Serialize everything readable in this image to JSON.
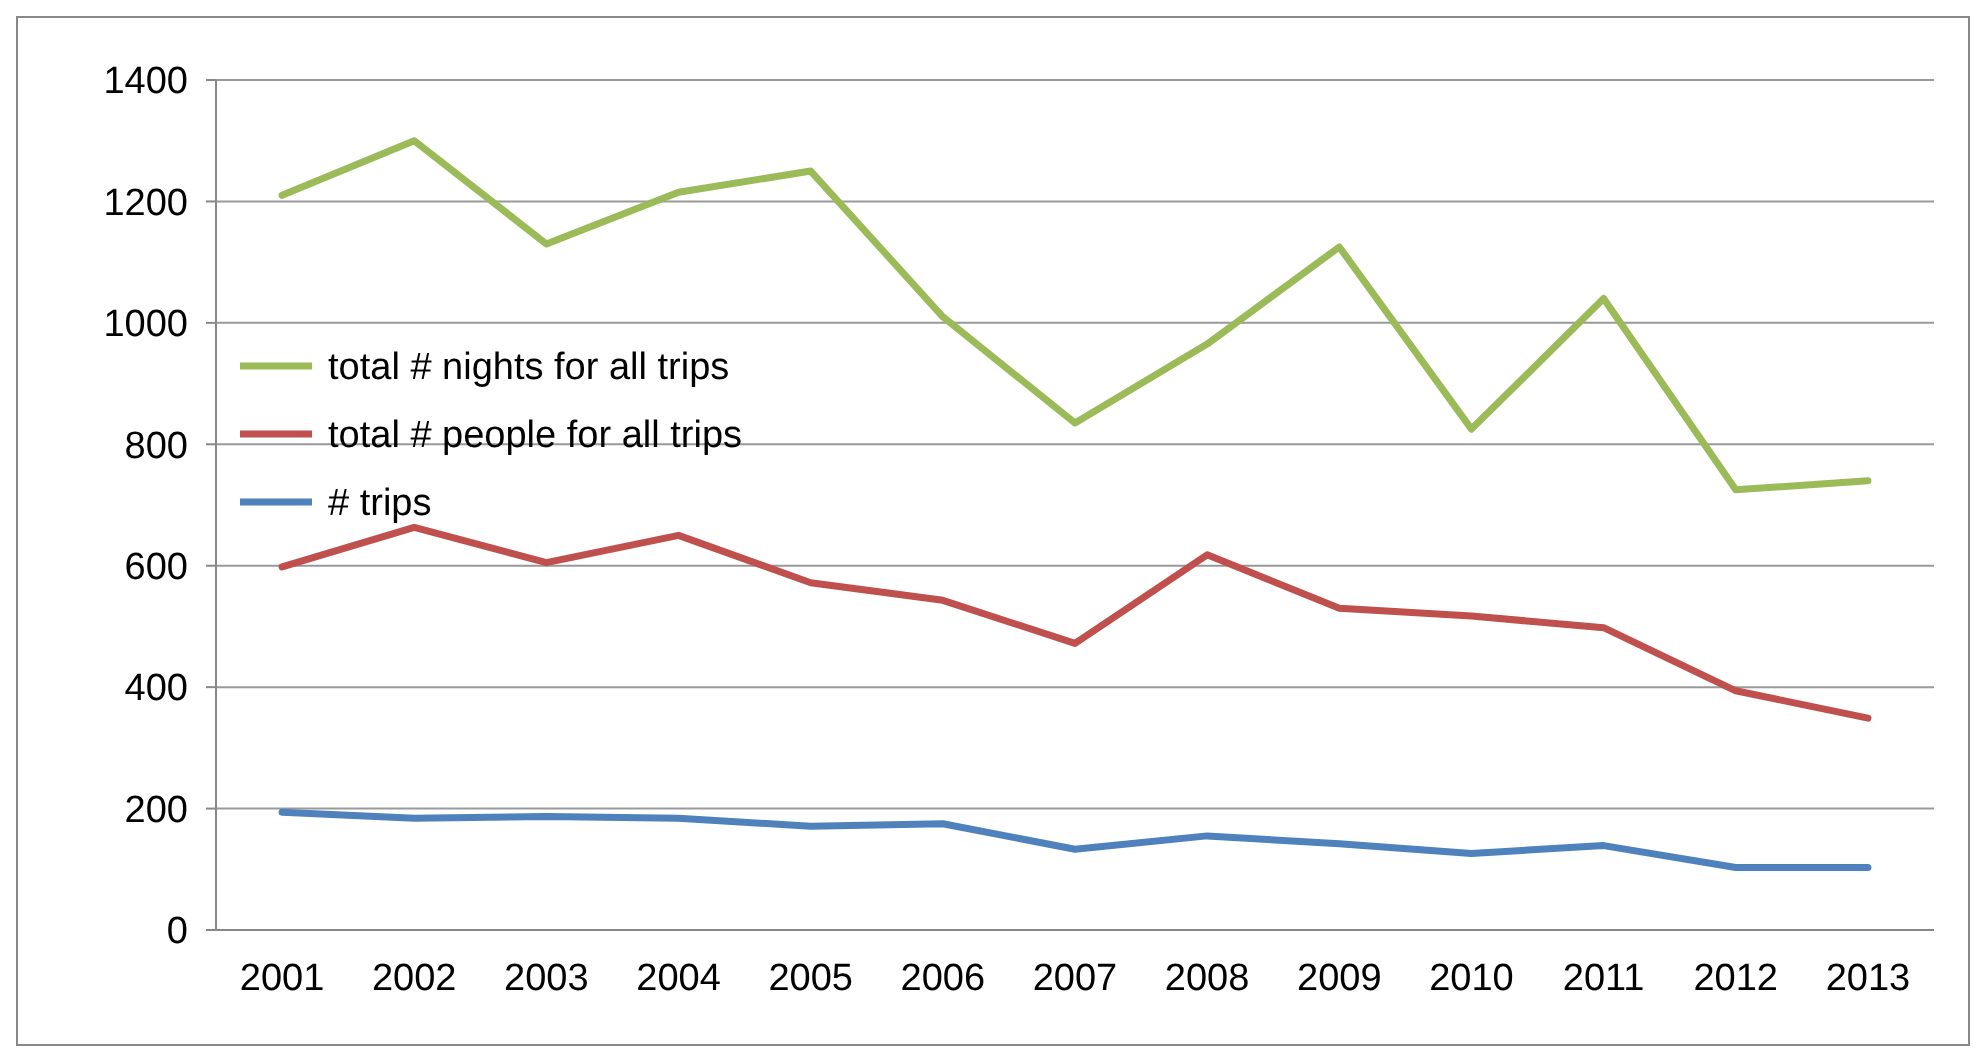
{
  "chart_data": {
    "type": "line",
    "categories": [
      "2001",
      "2002",
      "2003",
      "2004",
      "2005",
      "2006",
      "2007",
      "2008",
      "2009",
      "2010",
      "2011",
      "2012",
      "2013"
    ],
    "series": [
      {
        "name": "total # nights for all trips",
        "color": "#9bbb59",
        "values": [
          1210,
          1300,
          1130,
          1215,
          1250,
          1010,
          835,
          965,
          1125,
          825,
          1040,
          725,
          740
        ]
      },
      {
        "name": "total # people for all trips",
        "color": "#c0504d",
        "values": [
          598,
          663,
          605,
          650,
          572,
          543,
          472,
          618,
          530,
          517,
          498,
          394,
          349
        ]
      },
      {
        "name": "# trips",
        "color": "#4f81bd",
        "values": [
          194,
          184,
          187,
          184,
          171,
          175,
          133,
          155,
          142,
          126,
          139,
          103,
          103
        ]
      }
    ],
    "ylim": [
      0,
      1400
    ],
    "yticks": [
      0,
      200,
      400,
      600,
      800,
      1000,
      1200,
      1400
    ],
    "grid": "y",
    "legend": "left",
    "marker": "none",
    "line_style": "solid"
  }
}
